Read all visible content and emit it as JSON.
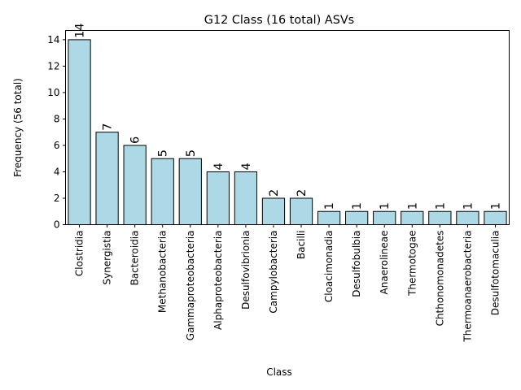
{
  "chart_data": {
    "type": "bar",
    "title": "G12 Class (16 total) ASVs",
    "xlabel": "Class",
    "ylabel": "Frequency (56 total)",
    "categories": [
      "Clostridia",
      "Synergistia",
      "Bacteroidia",
      "Methanobacteria",
      "Gammaproteobacteria",
      "Alphaproteobacteria",
      "Desulfovibrionia",
      "Campylobacteria",
      "Bacilli",
      "Cloacimonadia",
      "Desulfobulbia",
      "Anaerolineae",
      "Thermotogae",
      "Chthonomonadetes",
      "Thermoanaerobacteria",
      "Desulfotomaculia"
    ],
    "values": [
      14,
      7,
      6,
      5,
      5,
      4,
      4,
      2,
      2,
      1,
      1,
      1,
      1,
      1,
      1,
      1
    ],
    "data_labels": [
      "14",
      "7",
      "6",
      "5",
      "5",
      "4",
      "4",
      "2",
      "2",
      "1",
      "1",
      "1",
      "1",
      "1",
      "1",
      "1"
    ],
    "ylim": [
      0,
      14.7
    ],
    "yticks": [
      0,
      2,
      4,
      6,
      8,
      10,
      12,
      14
    ],
    "ytick_labels": [
      "0",
      "2",
      "4",
      "6",
      "8",
      "10",
      "12",
      "14"
    ],
    "bar_color": "#add8e6",
    "edge_color": "#000000",
    "grid": false,
    "legend": "none"
  }
}
